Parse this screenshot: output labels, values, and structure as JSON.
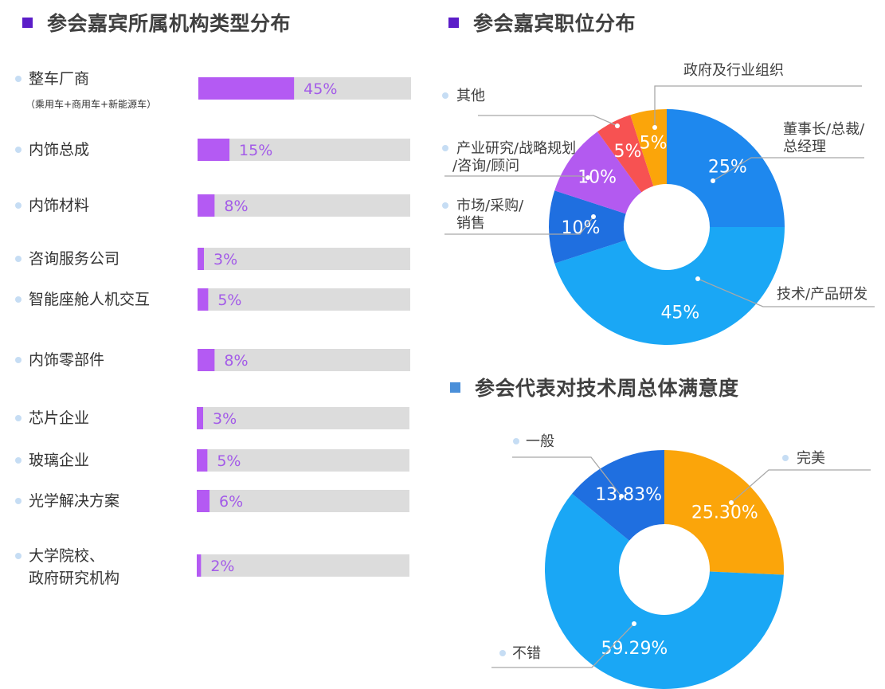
{
  "titles": {
    "org_types": "参会嘉宾所属机构类型分布",
    "positions": "参会嘉宾职位分布",
    "satisfaction": "参会代表对技术周总体满意度"
  },
  "colors": {
    "title_square_purple": "#5B1DC8",
    "title_square_blue": "#4A8FD9",
    "bar_fill": "#B45AF3",
    "bar_track": "#DCDCDC",
    "bar_value_text": "#A35BE8",
    "bullet": "#C6DDF4"
  },
  "chart_data": [
    {
      "type": "bar",
      "orientation": "horizontal",
      "title": "参会嘉宾所属机构类型分布",
      "categories": [
        [
          "整车厂商",
          "（乘用车+商用车+新能源车）"
        ],
        [
          "内饰总成"
        ],
        [
          "内饰材料"
        ],
        [
          "咨询服务公司"
        ],
        [
          "智能座舱人机交互"
        ],
        [
          "内饰零部件"
        ],
        [
          "芯片企业"
        ],
        [
          "玻璃企业"
        ],
        [
          "光学解决方案"
        ],
        [
          "大学院校、",
          "政府研究机构"
        ]
      ],
      "values": [
        45,
        15,
        8,
        3,
        5,
        8,
        3,
        5,
        6,
        2
      ],
      "value_labels": [
        "45%",
        "15%",
        "8%",
        "3%",
        "5%",
        "8%",
        "3%",
        "5%",
        "6%",
        "2%"
      ],
      "xlim": [
        0,
        100
      ],
      "unit": "%"
    },
    {
      "type": "pie",
      "style": "donut",
      "title": "参会嘉宾职位分布",
      "slices": [
        {
          "label": [
            "董事长/总裁/",
            "总经理"
          ],
          "value": 25,
          "value_label": "25%",
          "color": "#1E88EE"
        },
        {
          "label": [
            "技术/产品研发"
          ],
          "value": 45,
          "value_label": "45%",
          "color": "#1AA7F5"
        },
        {
          "label": [
            "市场/采购/",
            "销售"
          ],
          "value": 10,
          "value_label": "10%",
          "color": "#1F6FE0"
        },
        {
          "label": [
            "产业研究/战略规划",
            "/咨询/顾问"
          ],
          "value": 10,
          "value_label": "10%",
          "color": "#B35AF0"
        },
        {
          "label": [
            "其他"
          ],
          "value": 5,
          "value_label": "5%",
          "color": "#F75252"
        },
        {
          "label": [
            "政府及行业组织"
          ],
          "value": 5,
          "value_label": "5%",
          "color": "#FBA50A"
        }
      ]
    },
    {
      "type": "pie",
      "style": "donut",
      "title": "参会代表对技术周总体满意度",
      "slices": [
        {
          "label": [
            "完美"
          ],
          "value": 25.3,
          "value_label": "25.30%",
          "color": "#FBA50A"
        },
        {
          "label": [
            "不错"
          ],
          "value": 59.29,
          "value_label": "59.29%",
          "color": "#1AA7F5"
        },
        {
          "label": [
            "一般"
          ],
          "value": 13.83,
          "value_label": "13.83%",
          "color": "#1F6FE0"
        }
      ]
    }
  ]
}
